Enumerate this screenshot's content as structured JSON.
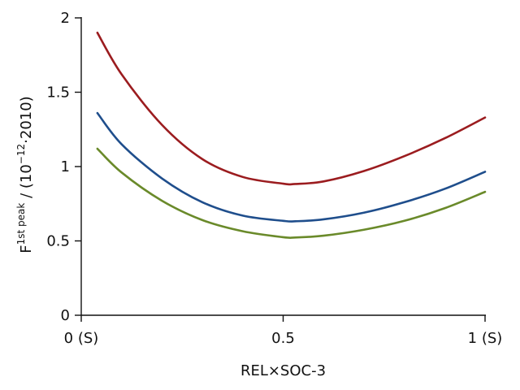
{
  "chart_data": {
    "type": "line",
    "xlabel": "REL×SOC-3",
    "ylabel": {
      "base": "F",
      "superscript": "1st peak",
      "middle": " / (10",
      "exponent": "−12",
      "suffix": "·2010)"
    },
    "xlim": [
      0,
      1
    ],
    "ylim": [
      0,
      2
    ],
    "x_ticks": [
      {
        "value": 0,
        "label": "0 (S)"
      },
      {
        "value": 0.5,
        "label": "0.5"
      },
      {
        "value": 1,
        "label": "1 (S)"
      }
    ],
    "y_ticks": [
      {
        "value": 0,
        "label": "0"
      },
      {
        "value": 0.5,
        "label": "0.5"
      },
      {
        "value": 1,
        "label": "1"
      },
      {
        "value": 1.5,
        "label": "1.5"
      },
      {
        "value": 2,
        "label": "2"
      }
    ],
    "grid": false,
    "series": [
      {
        "color": "#9b1c1f",
        "x": [
          0.04,
          0.1,
          0.2,
          0.3,
          0.4,
          0.5,
          0.53,
          0.6,
          0.7,
          0.8,
          0.9,
          1.0
        ],
        "y": [
          1.9,
          1.62,
          1.28,
          1.05,
          0.93,
          0.885,
          0.883,
          0.9,
          0.97,
          1.07,
          1.19,
          1.33
        ]
      },
      {
        "color": "#1f4e8c",
        "x": [
          0.04,
          0.1,
          0.2,
          0.3,
          0.4,
          0.5,
          0.53,
          0.6,
          0.7,
          0.8,
          0.9,
          1.0
        ],
        "y": [
          1.36,
          1.15,
          0.92,
          0.76,
          0.67,
          0.635,
          0.632,
          0.645,
          0.69,
          0.76,
          0.85,
          0.965
        ]
      },
      {
        "color": "#6a8a2a",
        "x": [
          0.04,
          0.1,
          0.2,
          0.3,
          0.4,
          0.5,
          0.53,
          0.6,
          0.7,
          0.8,
          0.9,
          1.0
        ],
        "y": [
          1.12,
          0.96,
          0.77,
          0.64,
          0.565,
          0.525,
          0.523,
          0.535,
          0.575,
          0.635,
          0.72,
          0.83
        ]
      }
    ]
  }
}
